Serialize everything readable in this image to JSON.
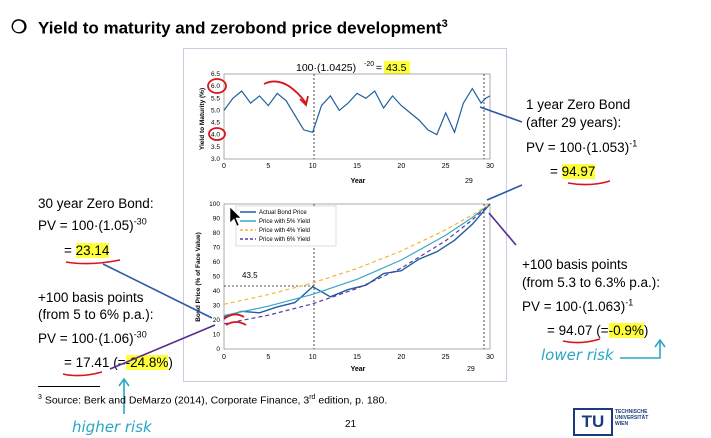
{
  "slide": {
    "bullet": "❍",
    "title": "Yield to maturity and zerobond price development",
    "title_sup": "3",
    "footnote_num": "3",
    "footnote": " Source: Berk and DeMarzo (2014), Corporate Finance, 3",
    "footnote_sup": "rd",
    "footnote_end": " edition, p. 180.",
    "page_number": "21",
    "logo": "TU",
    "logo_text": [
      "TECHNISCHE",
      "UNIVERSITÄT",
      "WIEN"
    ]
  },
  "annotations": {
    "top_formula_pre": "100·(1.0425)",
    "top_formula_exp": "-20",
    "top_formula_eq": " = ",
    "top_formula_val": "43.5",
    "left1_title": "30 year Zero Bond:",
    "left1_formula": "PV = 100·(1.05)",
    "left1_exp": "-30",
    "left1_eq": "= ",
    "left1_val": "23.14",
    "left2_line1": "+100 basis points",
    "left2_line2": "(from 5 to 6% p.a.):",
    "left2_formula": "PV = 100·(1.06)",
    "left2_exp": "-30",
    "left2_eq": "= ",
    "left2_val": "17.41",
    "left2_open": " (=",
    "left2_pct": "-24.8%",
    "left2_close": ")",
    "right1_line1": "1 year Zero Bond",
    "right1_line2": "(after 29 years):",
    "right1_formula": "PV = 100·(1.053)",
    "right1_exp": "-1",
    "right1_eq": "= ",
    "right1_val": "94.97",
    "right2_line1": "+100 basis points",
    "right2_line2": "(from 5.3 to 6.3% p.a.):",
    "right2_formula": "PV = 100·(1.063)",
    "right2_exp": "-1",
    "right2_eq": "= ",
    "right2_val": "94.07",
    "right2_open": " (=",
    "right2_pct": "-0.9%",
    "right2_close": ")",
    "hand_lower": "lower risk",
    "hand_higher": "higher risk"
  },
  "chart_data": [
    {
      "type": "line",
      "ylabel": "Yield to Maturity (%)",
      "xlabel": "Year",
      "xlim": [
        0,
        30
      ],
      "ylim": [
        3.0,
        6.5
      ],
      "x_ticks": [
        "0",
        "5",
        "10",
        "15",
        "20",
        "25",
        "30"
      ],
      "y_ticks": [
        "3.0",
        "3.5",
        "4.0",
        "4.5",
        "5.0",
        "5.5",
        "6.0",
        "6.5"
      ],
      "marker_label": "29",
      "series": [
        {
          "values_x": [
            0,
            1,
            2,
            3,
            4,
            5,
            6,
            7,
            8,
            9,
            10,
            11,
            12,
            13,
            14,
            15,
            16,
            17,
            18,
            19,
            20,
            21,
            22,
            23,
            24,
            25,
            26,
            27,
            28,
            29,
            29.5,
            30
          ],
          "values_y": [
            5.0,
            5.5,
            5.8,
            5.3,
            5.6,
            5.2,
            5.7,
            5.4,
            4.8,
            4.2,
            4.1,
            5.2,
            5.6,
            5.0,
            5.3,
            5.7,
            5.5,
            5.8,
            5.1,
            5.6,
            5.2,
            4.9,
            4.6,
            4.2,
            4.0,
            4.9,
            4.1,
            5.3,
            5.9,
            5.3,
            5.5,
            5.6
          ]
        }
      ]
    },
    {
      "type": "line",
      "ylabel": "Bond Price (% of Face Value)",
      "xlabel": "Year",
      "xlim": [
        0,
        30
      ],
      "ylim": [
        0,
        100
      ],
      "x_ticks": [
        "0",
        "5",
        "10",
        "15",
        "20",
        "25",
        "30"
      ],
      "y_ticks": [
        "0",
        "10",
        "20",
        "30",
        "40",
        "50",
        "60",
        "70",
        "80",
        "90",
        "100"
      ],
      "annotation": "43.5",
      "marker_label": "29",
      "series": [
        {
          "name": "Actual Bond Price",
          "values_x": [
            0,
            2,
            4,
            6,
            8,
            10,
            12,
            14,
            16,
            18,
            20,
            22,
            24,
            26,
            28,
            29,
            30
          ],
          "values_y": [
            22,
            26,
            25,
            29,
            32,
            43,
            36,
            41,
            44,
            52,
            54,
            62,
            67,
            75,
            86,
            93,
            100
          ]
        },
        {
          "name": "Price with 5% Yield",
          "values_x": [
            0,
            5,
            10,
            15,
            20,
            25,
            28,
            30
          ],
          "values_y": [
            23.1,
            29.5,
            37.7,
            48.1,
            61.4,
            78.4,
            90.7,
            100
          ]
        },
        {
          "name": "Price with 4% Yield",
          "values_x": [
            0,
            5,
            10,
            15,
            20,
            25,
            28,
            30
          ],
          "values_y": [
            30.8,
            37.5,
            45.6,
            55.5,
            67.6,
            82.2,
            92.5,
            100
          ]
        },
        {
          "name": "Price with 6% Yield",
          "values_x": [
            0,
            5,
            10,
            15,
            20,
            25,
            28,
            30
          ],
          "values_y": [
            17.4,
            23.3,
            31.2,
            41.7,
            55.8,
            74.7,
            89.0,
            100
          ]
        }
      ]
    }
  ],
  "colors": {
    "actual": "#1f5f9e",
    "y5": "#3aa6c9",
    "y4": "#f4b63a",
    "y6": "#5a3d9e",
    "red_ink": "#d8141c",
    "blue_ink": "#2a5aa8",
    "purple_ink": "#5a2b8f",
    "teal_ink": "#2aa6c4",
    "highlight": "#ffff3a"
  }
}
